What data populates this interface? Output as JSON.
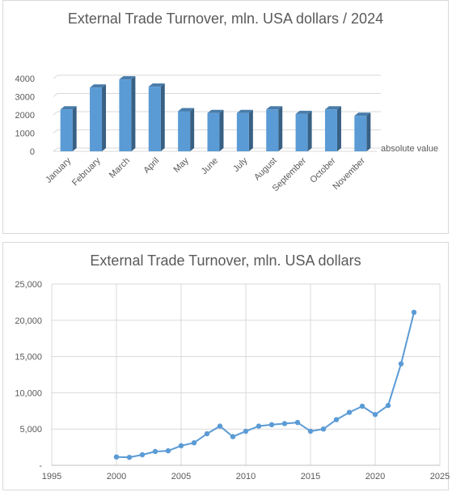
{
  "chart_data": [
    {
      "type": "bar",
      "title": "External Trade Turnover, mln. USA dollars / 2024",
      "categories": [
        "January",
        "February",
        "March",
        "April",
        "May",
        "June",
        "July",
        "August",
        "September",
        "October",
        "November"
      ],
      "series": [
        {
          "name": "absolute value",
          "values": [
            2300,
            3500,
            3950,
            3550,
            2200,
            2100,
            2100,
            2300,
            2050,
            2300,
            1950
          ]
        }
      ],
      "ylim": [
        0,
        4000
      ],
      "yticks": [
        "0",
        "1000",
        "2000",
        "3000",
        "4000"
      ],
      "grid": true,
      "legend": "right",
      "style": "3d",
      "color": "#5b9bd5"
    },
    {
      "type": "line",
      "title": "External Trade Turnover, mln. USA dollars",
      "x": [
        2000,
        2001,
        2002,
        2003,
        2004,
        2005,
        2006,
        2007,
        2008,
        2009,
        2010,
        2011,
        2012,
        2013,
        2014,
        2015,
        2016,
        2017,
        2018,
        2019,
        2020,
        2021,
        2022,
        2023
      ],
      "series": [
        {
          "values": [
            1150,
            1100,
            1450,
            1900,
            2000,
            2700,
            3100,
            4350,
            5400,
            3950,
            4700,
            5400,
            5600,
            5750,
            5900,
            4700,
            5000,
            6300,
            7300,
            8150,
            7000,
            8250,
            14000,
            21100
          ]
        }
      ],
      "xlim": [
        1995,
        2025
      ],
      "ylim": [
        0,
        25000
      ],
      "xticks": [
        "1995",
        "2000",
        "2005",
        "2010",
        "2015",
        "2020",
        "2025"
      ],
      "yticks": [
        "-",
        "5,000",
        "10,000",
        "15,000",
        "20,000",
        "25,000"
      ],
      "grid": true,
      "color": "#5b9bd5"
    }
  ]
}
